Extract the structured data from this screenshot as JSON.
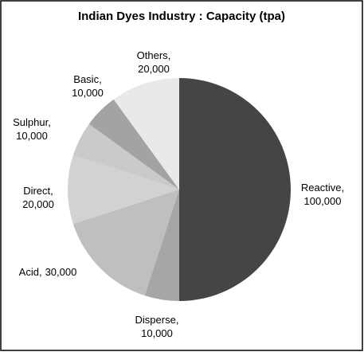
{
  "chart_data": {
    "type": "pie",
    "title": "Indian Dyes Industry : Capacity (tpa)",
    "categories": [
      "Reactive",
      "Disperse",
      "Acid",
      "Direct",
      "Sulphur",
      "Basic",
      "Others"
    ],
    "values": [
      100000,
      10000,
      30000,
      20000,
      10000,
      10000,
      20000
    ],
    "value_labels": [
      "100,000",
      "10,000",
      "30,000",
      "20,000",
      "10,000",
      "10,000",
      "20,000"
    ],
    "label_separator": ",",
    "colors": [
      "#454545",
      "#a6a6a6",
      "#bfbfbf",
      "#d2d2d2",
      "#cacaca",
      "#a3a3a3",
      "#e9e9e9"
    ]
  }
}
